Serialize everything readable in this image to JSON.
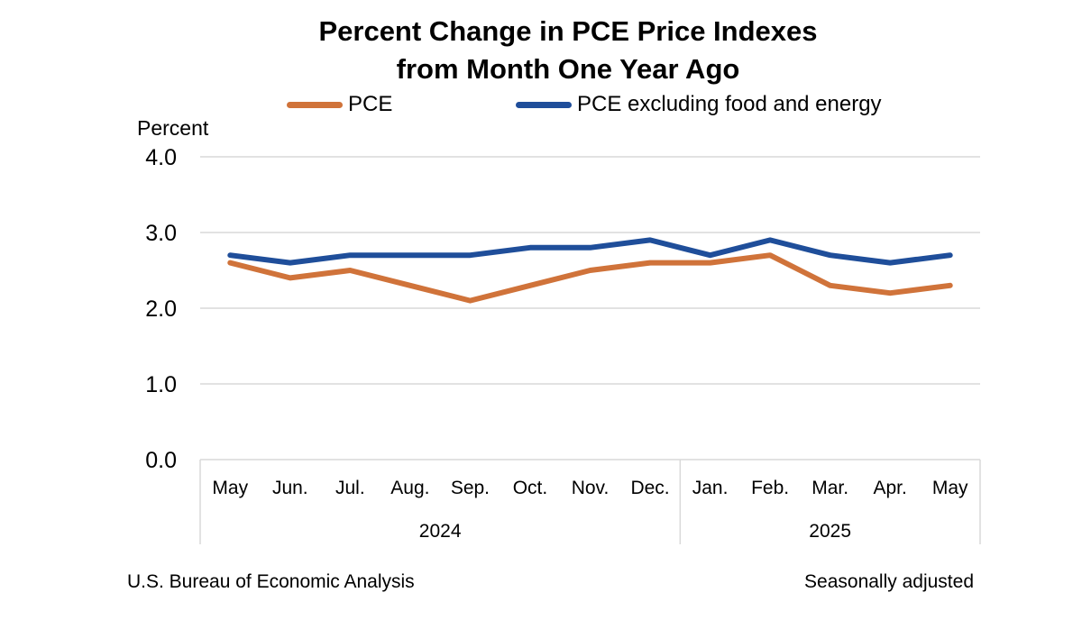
{
  "title_line1": "Percent Change in PCE Price Indexes",
  "title_line2": "from Month One Year Ago",
  "chart_data": {
    "type": "line",
    "title": "Percent Change in PCE Price Indexes from Month One Year Ago",
    "ylabel": "Percent",
    "xlabel": "",
    "ylim": [
      0,
      4
    ],
    "yticks": [
      "0.0",
      "1.0",
      "2.0",
      "3.0",
      "4.0"
    ],
    "ytick_values": [
      0,
      1,
      2,
      3,
      4
    ],
    "grid": true,
    "legend_position": "top",
    "categories": [
      "May",
      "Jun.",
      "Jul.",
      "Aug.",
      "Sep.",
      "Oct.",
      "Nov.",
      "Dec.",
      "Jan.",
      "Feb.",
      "Mar.",
      "Apr.",
      "May"
    ],
    "year_groups": [
      {
        "label": "2024",
        "count": 8
      },
      {
        "label": "2025",
        "count": 5
      }
    ],
    "series": [
      {
        "name": "PCE",
        "color": "#D0733A",
        "values": [
          2.6,
          2.4,
          2.5,
          2.3,
          2.1,
          2.3,
          2.5,
          2.6,
          2.6,
          2.7,
          2.3,
          2.2,
          2.3
        ]
      },
      {
        "name": "PCE excluding food and energy",
        "color": "#1F4E9A",
        "values": [
          2.7,
          2.6,
          2.7,
          2.7,
          2.7,
          2.8,
          2.8,
          2.9,
          2.7,
          2.9,
          2.7,
          2.6,
          2.7
        ]
      }
    ]
  },
  "footer": {
    "source": "U.S. Bureau of Economic Analysis",
    "note": "Seasonally adjusted"
  }
}
